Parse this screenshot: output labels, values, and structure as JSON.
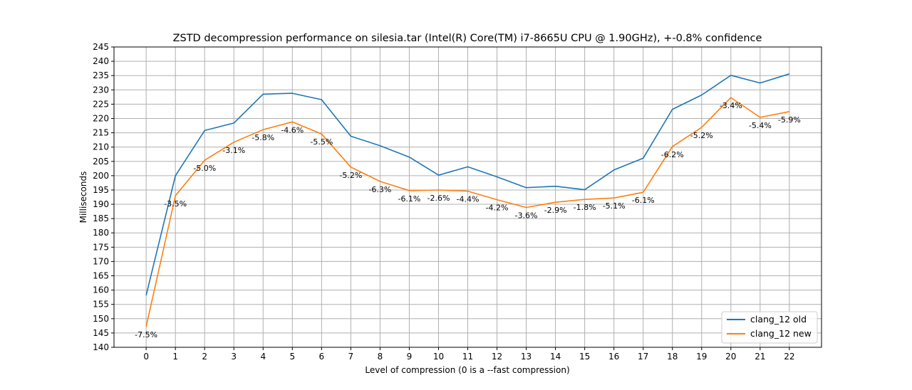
{
  "chart_data": {
    "type": "line",
    "title": "ZSTD decompression performance on silesia.tar (Intel(R) Core(TM) i7-8665U CPU @ 1.90GHz), +-0.8% confidence",
    "xlabel": "Level of compression (0 is a --fast compression)",
    "ylabel": "Milliseconds",
    "x": [
      0,
      1,
      2,
      3,
      4,
      5,
      6,
      7,
      8,
      9,
      10,
      11,
      12,
      13,
      14,
      15,
      16,
      17,
      18,
      19,
      20,
      21,
      22
    ],
    "xlim": [
      -1.1,
      23.1
    ],
    "ylim": [
      140,
      245
    ],
    "yticks": [
      140,
      145,
      150,
      155,
      160,
      165,
      170,
      175,
      180,
      185,
      190,
      195,
      200,
      205,
      210,
      215,
      220,
      225,
      230,
      235,
      240,
      245
    ],
    "grid": true,
    "legend_position": "lower-right",
    "series": [
      {
        "name": "clang_12 old",
        "color": "#1f77b4",
        "values": [
          158.2,
          200.0,
          215.8,
          218.4,
          228.5,
          228.8,
          226.6,
          213.8,
          210.5,
          206.5,
          200.2,
          203.1,
          199.6,
          195.8,
          196.3,
          195.1,
          202.0,
          206.1,
          223.2,
          228.2,
          235.1,
          232.4,
          235.6
        ]
      },
      {
        "name": "clang_12 new",
        "color": "#ff7f0e",
        "values": [
          147.2,
          193.0,
          205.4,
          211.7,
          216.1,
          218.8,
          214.6,
          203.0,
          198.0,
          194.8,
          195.0,
          194.6,
          191.6,
          188.9,
          190.7,
          191.7,
          192.2,
          194.2,
          210.2,
          216.9,
          227.3,
          220.4,
          222.4
        ]
      }
    ],
    "annotations": [
      "-7.5%",
      "-3.5%",
      "-5.0%",
      "-3.1%",
      "-5.8%",
      "-4.6%",
      "-5.5%",
      "-5.2%",
      "-6.3%",
      "-6.1%",
      "-2.6%",
      "-4.4%",
      "-4.2%",
      "-3.6%",
      "-2.9%",
      "-1.8%",
      "-5.1%",
      "-6.1%",
      "-6.2%",
      "-5.2%",
      "-3.4%",
      "-5.4%",
      "-5.9%"
    ]
  }
}
